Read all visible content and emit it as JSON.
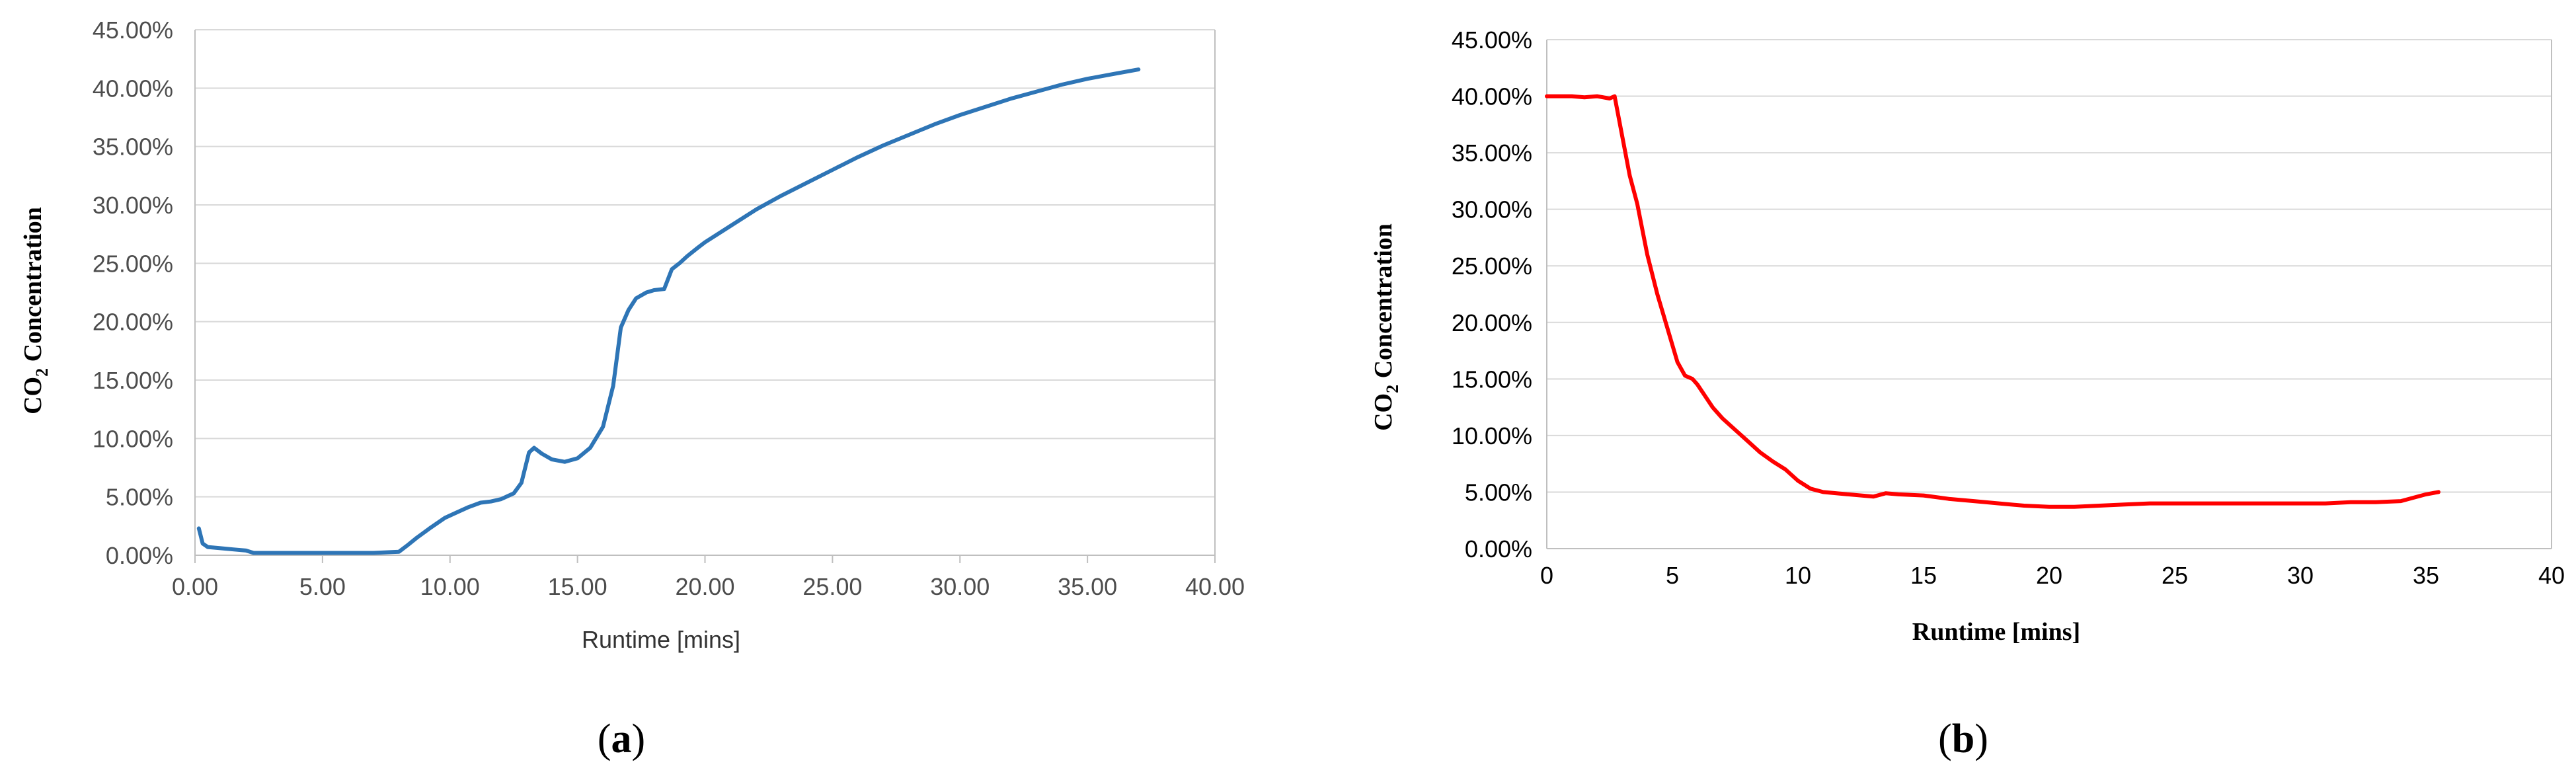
{
  "panels": [
    {
      "caption_letter": "a",
      "caption_open": "(",
      "caption_close": ")"
    },
    {
      "caption_letter": "b",
      "caption_open": "(",
      "caption_close": ")"
    }
  ],
  "chart_data": [
    {
      "type": "line",
      "title": "",
      "xlabel": "Runtime [mins]",
      "ylabel": "CO2 Concentration",
      "ylabel_main": "CO",
      "ylabel_sub": "2",
      "ylabel_rest": " Concentration",
      "xlim": [
        0,
        40
      ],
      "ylim": [
        0,
        45
      ],
      "x_ticks": [
        "0.00",
        "5.00",
        "10.00",
        "15.00",
        "20.00",
        "25.00",
        "30.00",
        "35.00",
        "40.00"
      ],
      "y_ticks": [
        "0.00%",
        "5.00%",
        "10.00%",
        "15.00%",
        "20.00%",
        "25.00%",
        "30.00%",
        "35.00%",
        "40.00%",
        "45.00%"
      ],
      "grid": "horizontal",
      "color": "#2e75b6",
      "series": [
        {
          "x": [
            0.15,
            0.3,
            0.5,
            1.0,
            1.5,
            2.0,
            2.3,
            3.0,
            5.0,
            7.0,
            8.0,
            8.3,
            8.7,
            9.2,
            9.8,
            10.2,
            10.7,
            11.2,
            11.6,
            12.0,
            12.5,
            12.8,
            13.1,
            13.3,
            13.6,
            14.0,
            14.5,
            15.0,
            15.5,
            16.0,
            16.4,
            16.7,
            17.0,
            17.3,
            17.7,
            18.0,
            18.4,
            18.7,
            19.0,
            19.3,
            19.7,
            20.0,
            21.0,
            22.0,
            23.0,
            24.0,
            25.0,
            26.0,
            27.0,
            28.0,
            29.0,
            30.0,
            31.0,
            32.0,
            33.0,
            34.0,
            35.0,
            36.0,
            37.0
          ],
          "y": [
            2.3,
            1.0,
            0.7,
            0.6,
            0.5,
            0.4,
            0.2,
            0.2,
            0.2,
            0.2,
            0.3,
            0.8,
            1.5,
            2.3,
            3.2,
            3.6,
            4.1,
            4.5,
            4.6,
            4.8,
            5.3,
            6.2,
            8.8,
            9.2,
            8.7,
            8.2,
            8.0,
            8.3,
            9.2,
            11.0,
            14.5,
            19.5,
            21.0,
            22.0,
            22.5,
            22.7,
            22.8,
            24.5,
            25.0,
            25.6,
            26.3,
            26.8,
            28.2,
            29.6,
            30.8,
            31.9,
            33.0,
            34.1,
            35.1,
            36.0,
            36.9,
            37.7,
            38.4,
            39.1,
            39.7,
            40.3,
            40.8,
            41.2,
            41.6
          ]
        }
      ]
    },
    {
      "type": "line",
      "title": "",
      "xlabel": "Runtime [mins]",
      "ylabel": "CO2 Concentration",
      "ylabel_main": "CO",
      "ylabel_sub": "2",
      "ylabel_rest": " Concentration",
      "xlim": [
        0,
        40
      ],
      "ylim": [
        0,
        45
      ],
      "x_ticks": [
        "0",
        "5",
        "10",
        "15",
        "20",
        "25",
        "30",
        "35",
        "40"
      ],
      "y_ticks": [
        "0.00%",
        "5.00%",
        "10.00%",
        "15.00%",
        "20.00%",
        "25.00%",
        "30.00%",
        "35.00%",
        "40.00%",
        "45.00%"
      ],
      "grid": "horizontal",
      "color": "#ff0000",
      "series": [
        {
          "x": [
            0,
            0.5,
            1.0,
            1.5,
            2.0,
            2.5,
            2.7,
            3.0,
            3.3,
            3.6,
            4.0,
            4.4,
            4.8,
            5.2,
            5.5,
            5.8,
            6.0,
            6.3,
            6.6,
            7.0,
            7.5,
            8.0,
            8.5,
            9.0,
            9.5,
            10.0,
            10.5,
            11.0,
            12.0,
            13.0,
            13.5,
            14.0,
            15.0,
            16.0,
            17.0,
            18.0,
            19.0,
            20.0,
            21.0,
            22.0,
            23.0,
            24.0,
            25.0,
            26.0,
            27.0,
            28.0,
            29.0,
            30.0,
            31.0,
            32.0,
            33.0,
            34.0,
            35.0,
            35.5
          ],
          "y": [
            40.0,
            40.0,
            40.0,
            39.9,
            40.0,
            39.8,
            40.0,
            36.5,
            33.0,
            30.5,
            26.0,
            22.5,
            19.5,
            16.5,
            15.3,
            15.0,
            14.5,
            13.5,
            12.5,
            11.5,
            10.5,
            9.5,
            8.5,
            7.7,
            7.0,
            6.0,
            5.3,
            5.0,
            4.8,
            4.6,
            4.9,
            4.8,
            4.7,
            4.4,
            4.2,
            4.0,
            3.8,
            3.7,
            3.7,
            3.8,
            3.9,
            4.0,
            4.0,
            4.0,
            4.0,
            4.0,
            4.0,
            4.0,
            4.0,
            4.1,
            4.1,
            4.2,
            4.8,
            5.0
          ]
        }
      ]
    }
  ]
}
